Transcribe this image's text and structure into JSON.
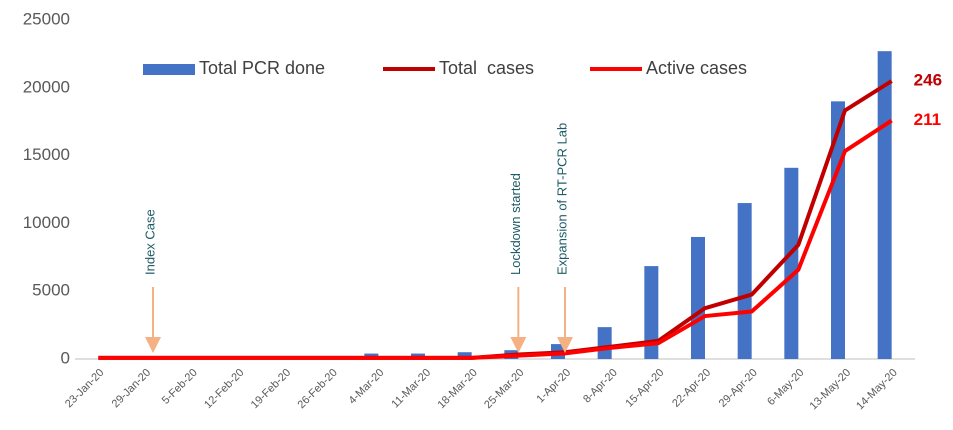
{
  "chart_data": {
    "type": "bar_line",
    "categories": [
      "23-Jan-20",
      "29-Jan-20",
      "5-Feb-20",
      "12-Feb-20",
      "19-Feb-20",
      "26-Feb-20",
      "4-Mar-20",
      "11-Mar-20",
      "18-Mar-20",
      "25-Mar-20",
      "1-Apr-20",
      "8-Apr-20",
      "15-Apr-20",
      "22-Apr-20",
      "29-Apr-20",
      "6-May-20",
      "13-May-20",
      "14-May-20"
    ],
    "ylim": [
      0,
      25000
    ],
    "yticks": [
      0,
      5000,
      10000,
      15000,
      20000,
      25000
    ],
    "y2lim": [
      0,
      300
    ],
    "series": [
      {
        "name": "Total PCR done",
        "type": "bar",
        "color": "#4472c4",
        "values": [
          0,
          0,
          0,
          0,
          0,
          0,
          400,
          400,
          500,
          650,
          1100,
          2350,
          6850,
          9000,
          11500,
          14100,
          19000,
          22700
        ]
      },
      {
        "name": "Total  cases",
        "type": "line",
        "axis": "y2",
        "color": "#c00000",
        "values": [
          1,
          1,
          1,
          1,
          1,
          1,
          1,
          1,
          1,
          4,
          6,
          11,
          16,
          45,
          57,
          101,
          220,
          246
        ]
      },
      {
        "name": "Active cases",
        "type": "line",
        "axis": "y2",
        "color": "#ff0000",
        "values": [
          1,
          1,
          1,
          1,
          1,
          1,
          1,
          1,
          1,
          3,
          5,
          10,
          14,
          38,
          42,
          79,
          184,
          211
        ]
      }
    ],
    "annotations": [
      {
        "text": "Index Case",
        "x": "29-Jan-20"
      },
      {
        "text": "Lockdown started",
        "x": "25-Mar-20"
      },
      {
        "text": "Expansion of RT-PCR Lab",
        "x": "1-Apr-20"
      }
    ]
  }
}
